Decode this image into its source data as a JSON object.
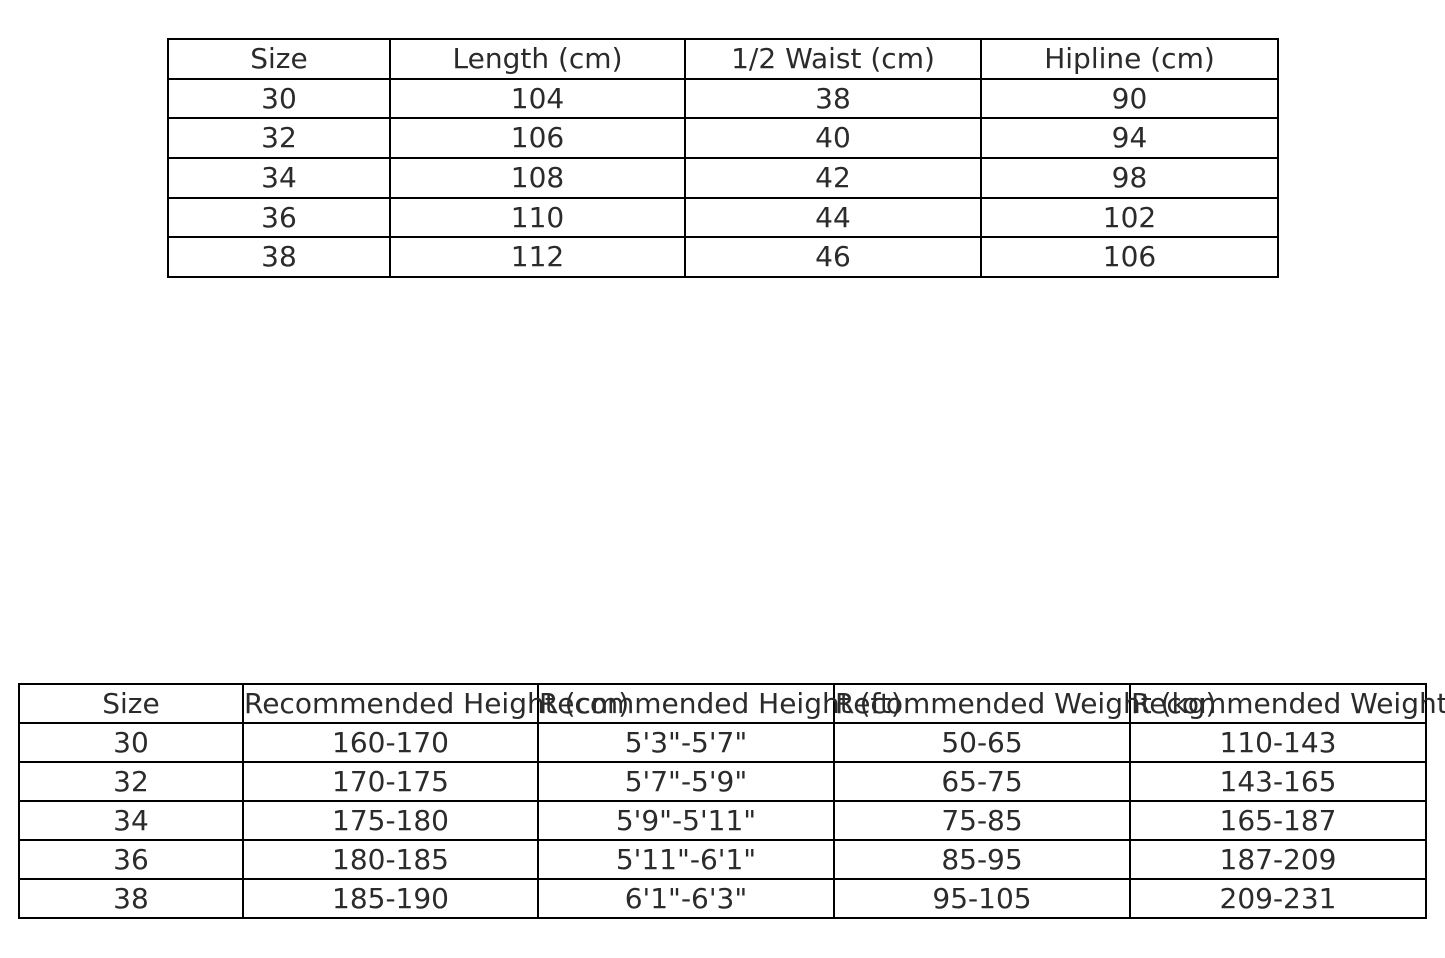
{
  "page": {
    "background_color": "#ffffff",
    "text_color": "#2b2b2b",
    "border_color": "#000000"
  },
  "chart_data": [
    {
      "type": "table",
      "name": "garment-size-specifications",
      "columns": [
        "Size",
        "Length (cm)",
        "1/2 Waist (cm)",
        "Hipline (cm)"
      ],
      "rows": [
        [
          "30",
          "104",
          "38",
          "90"
        ],
        [
          "32",
          "106",
          "40",
          "94"
        ],
        [
          "34",
          "108",
          "42",
          "98"
        ],
        [
          "36",
          "110",
          "44",
          "102"
        ],
        [
          "38",
          "112",
          "46",
          "106"
        ]
      ],
      "layout": {
        "grid": "full-borders",
        "header_style": "plain"
      }
    },
    {
      "type": "table",
      "name": "size-recommendations",
      "columns": [
        "Size",
        "Recommended Height (cm)",
        "Recommended Height (ft)",
        "Recommended Weight (kg)",
        "Recommended Weight (lbs)"
      ],
      "rows": [
        [
          "30",
          "160-170",
          "5'3\"-5'7\"",
          "50-65",
          "110-143"
        ],
        [
          "32",
          "170-175",
          "5'7\"-5'9\"",
          "65-75",
          "143-165"
        ],
        [
          "34",
          "175-180",
          "5'9\"-5'11\"",
          "75-85",
          "165-187"
        ],
        [
          "36",
          "180-185",
          "5'11\"-6'1\"",
          "85-95",
          "187-209"
        ],
        [
          "38",
          "185-190",
          "6'1\"-6'3\"",
          "95-105",
          "209-231"
        ]
      ],
      "layout": {
        "grid": "full-borders",
        "header_style": "plain",
        "note": "header labels overflow their columns and overlap"
      }
    }
  ]
}
